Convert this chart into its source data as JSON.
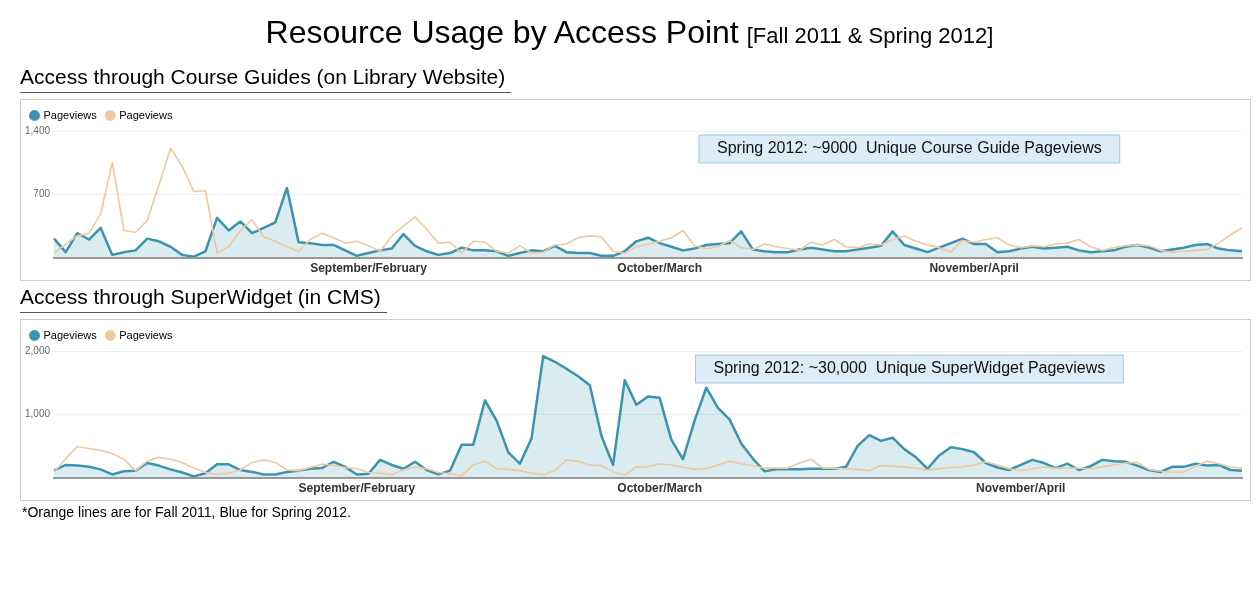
{
  "chart_data": [
    {
      "type": "other",
      "title": "Resource Usage by Access Point",
      "subtitle": "[Fall 2011 & Spring 2012]"
    },
    {
      "type": "line",
      "title": "Access through Course Guides (on Library Website)",
      "annotations": [
        "Spring 2012: ~9000  Unique Course Guide Pageviews"
      ],
      "categories": [
        null,
        null,
        null,
        null,
        null,
        null,
        null,
        null,
        null,
        null,
        null,
        null,
        null,
        null,
        null,
        null,
        null,
        null,
        null,
        null,
        null,
        null,
        null,
        null,
        null,
        null,
        null,
        "September/February",
        null,
        null,
        null,
        null,
        null,
        null,
        null,
        null,
        null,
        null,
        null,
        null,
        null,
        null,
        null,
        null,
        null,
        null,
        null,
        null,
        null,
        null,
        null,
        null,
        "October/March",
        null,
        null,
        null,
        null,
        null,
        null,
        null,
        null,
        null,
        null,
        null,
        null,
        null,
        null,
        null,
        null,
        null,
        null,
        null,
        null,
        null,
        null,
        null,
        null,
        null,
        null,
        "November/April",
        null,
        null,
        null,
        null,
        null,
        null,
        null,
        null,
        null,
        null,
        null,
        null,
        null,
        null,
        null,
        null,
        null,
        null,
        null,
        null,
        null,
        null,
        null
      ],
      "ylim": [
        0,
        1400
      ],
      "yticks": [
        700,
        {
          "value": 1400,
          "label": "1,400"
        }
      ],
      "grid": "y",
      "legend": "top left",
      "marker": "none",
      "series": [
        {
          "name": "Pageviews",
          "type": "area",
          "color": "#3a94b0",
          "values": [
            210,
            60,
            270,
            200,
            330,
            30,
            60,
            80,
            210,
            180,
            120,
            30,
            10,
            70,
            440,
            300,
            400,
            270,
            330,
            390,
            770,
            170,
            160,
            140,
            140,
            80,
            20,
            50,
            80,
            100,
            260,
            130,
            70,
            30,
            50,
            110,
            80,
            80,
            70,
            20,
            50,
            80,
            70,
            130,
            60,
            50,
            50,
            20,
            20,
            70,
            180,
            220,
            160,
            120,
            80,
            100,
            140,
            150,
            160,
            290,
            90,
            70,
            60,
            60,
            90,
            110,
            90,
            70,
            70,
            90,
            110,
            130,
            290,
            140,
            100,
            60,
            110,
            160,
            210,
            150,
            150,
            60,
            70,
            100,
            120,
            100,
            110,
            120,
            80,
            60,
            70,
            80,
            120,
            140,
            110,
            70,
            90,
            110,
            140,
            150,
            100,
            80,
            70
          ]
        },
        {
          "name": "Pageviews",
          "type": "line",
          "color": "#f0c8a0",
          "values": [
            50,
            150,
            240,
            270,
            480,
            1050,
            300,
            280,
            410,
            800,
            1210,
            1010,
            730,
            740,
            50,
            120,
            300,
            420,
            230,
            180,
            120,
            70,
            200,
            270,
            220,
            160,
            180,
            130,
            70,
            240,
            350,
            450,
            310,
            160,
            170,
            50,
            180,
            170,
            70,
            50,
            130,
            50,
            60,
            140,
            150,
            220,
            240,
            230,
            70,
            50,
            120,
            150,
            180,
            220,
            300,
            130,
            100,
            120,
            190,
            110,
            90,
            150,
            120,
            100,
            80,
            170,
            140,
            200,
            120,
            110,
            150,
            140,
            200,
            240,
            180,
            140,
            110,
            60,
            190,
            170,
            200,
            220,
            140,
            110,
            130,
            120,
            150,
            160,
            200,
            120,
            80,
            110,
            130,
            140,
            130,
            80,
            60,
            70,
            80,
            90,
            160,
            250,
            330
          ]
        }
      ]
    },
    {
      "type": "line",
      "title": "Access through SuperWidget (in CMS)",
      "annotations": [
        "Spring 2012: ~30,000  Unique SuperWidget Pageviews",
        "*Orange lines are for Fall 2011, Blue for Spring 2012."
      ],
      "categories": [
        null,
        null,
        null,
        null,
        null,
        null,
        null,
        null,
        null,
        null,
        null,
        null,
        null,
        null,
        null,
        null,
        null,
        null,
        null,
        null,
        null,
        null,
        null,
        null,
        null,
        null,
        "September/February",
        null,
        null,
        null,
        null,
        null,
        null,
        null,
        null,
        null,
        null,
        null,
        null,
        null,
        null,
        null,
        null,
        null,
        null,
        null,
        null,
        null,
        null,
        null,
        null,
        null,
        "October/March",
        null,
        null,
        null,
        null,
        null,
        null,
        null,
        null,
        null,
        null,
        null,
        null,
        null,
        null,
        null,
        null,
        null,
        null,
        null,
        null,
        null,
        null,
        null,
        null,
        null,
        null,
        null,
        null,
        null,
        null,
        "November/April",
        null,
        null,
        null,
        null,
        null,
        null,
        null,
        null,
        null,
        null,
        null,
        null,
        null,
        null,
        null,
        null,
        null,
        null,
        null
      ],
      "ylim": [
        0,
        2000
      ],
      "yticks": [
        {
          "value": 1000,
          "label": "1,000"
        },
        {
          "value": 2000,
          "label": "2,000"
        }
      ],
      "grid": "y",
      "legend": "top left",
      "marker": "none",
      "series": [
        {
          "name": "Pageviews",
          "type": "area",
          "color": "#3a94b0",
          "values": [
            110,
            200,
            190,
            170,
            130,
            50,
            100,
            110,
            230,
            190,
            130,
            80,
            20,
            70,
            210,
            210,
            120,
            90,
            50,
            50,
            90,
            110,
            140,
            150,
            250,
            170,
            50,
            60,
            280,
            200,
            140,
            250,
            120,
            50,
            110,
            520,
            520,
            1220,
            900,
            400,
            220,
            620,
            1920,
            1830,
            1720,
            1600,
            1460,
            660,
            200,
            1540,
            1150,
            1280,
            1260,
            600,
            290,
            900,
            1420,
            1100,
            920,
            540,
            300,
            100,
            130,
            130,
            130,
            140,
            140,
            140,
            170,
            500,
            670,
            580,
            630,
            450,
            320,
            140,
            350,
            480,
            450,
            400,
            230,
            160,
            120,
            200,
            280,
            230,
            150,
            220,
            120,
            180,
            280,
            260,
            250,
            190,
            120,
            90,
            170,
            170,
            220,
            190,
            200,
            120,
            110
          ]
        },
        {
          "name": "Pageviews",
          "type": "line",
          "color": "#f0c8a0",
          "values": [
            80,
            300,
            490,
            460,
            430,
            380,
            290,
            110,
            260,
            320,
            290,
            240,
            150,
            80,
            50,
            70,
            120,
            240,
            280,
            240,
            120,
            110,
            160,
            210,
            190,
            160,
            140,
            80,
            70,
            50,
            120,
            170,
            140,
            80,
            60,
            30,
            200,
            260,
            140,
            130,
            110,
            70,
            50,
            110,
            280,
            260,
            200,
            190,
            90,
            40,
            170,
            170,
            220,
            200,
            160,
            130,
            140,
            200,
            260,
            220,
            190,
            150,
            150,
            150,
            230,
            290,
            150,
            150,
            140,
            130,
            110,
            190,
            180,
            170,
            150,
            120,
            140,
            160,
            170,
            200,
            250,
            200,
            140,
            110,
            140,
            170,
            150,
            150,
            150,
            140,
            170,
            200,
            230,
            240,
            130,
            100,
            80,
            90,
            180,
            260,
            220,
            170,
            150
          ]
        }
      ]
    }
  ]
}
